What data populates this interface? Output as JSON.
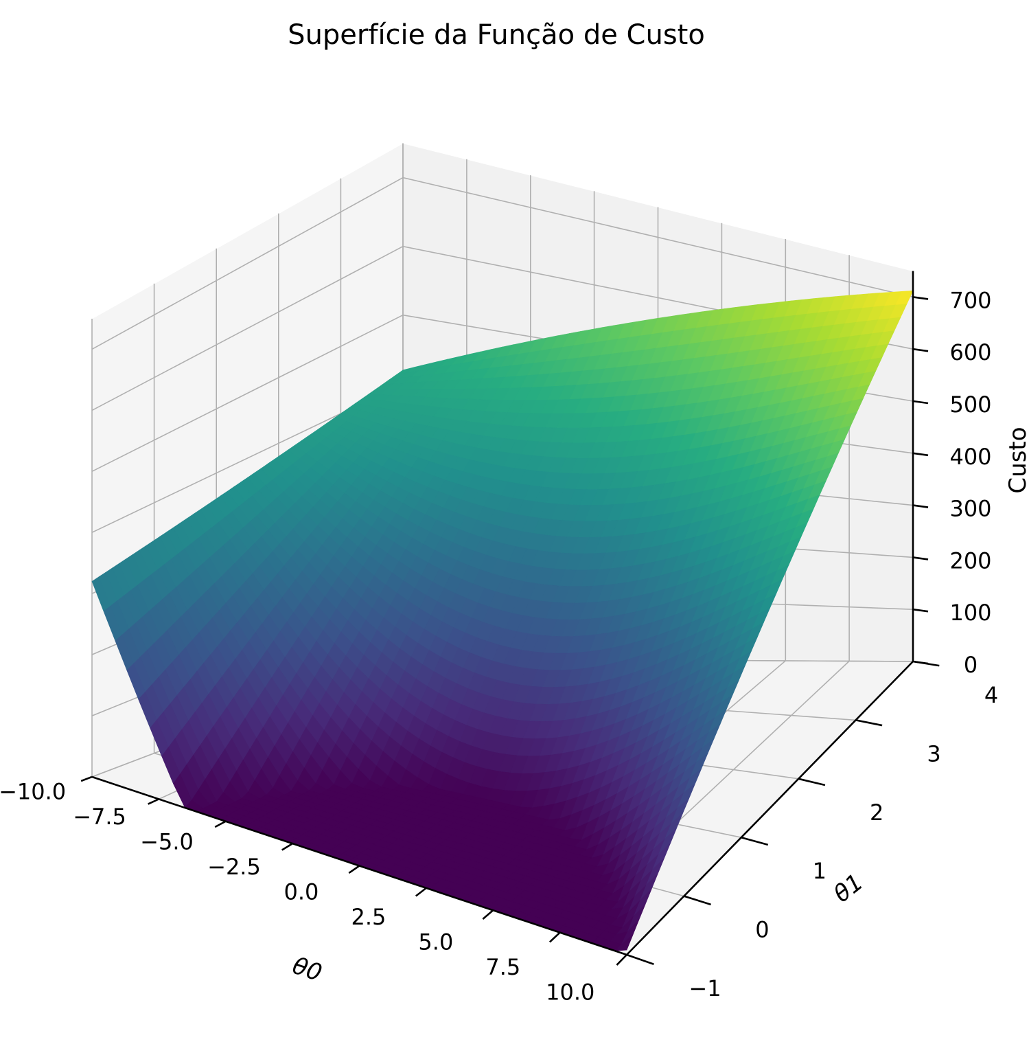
{
  "chart_data": {
    "type": "surface",
    "title": "Superfície da Função de Custo",
    "xlabel": "θ0",
    "ylabel": "θ1",
    "zlabel": "Custo",
    "xlim": [
      -10,
      10
    ],
    "ylim": [
      -1,
      4
    ],
    "zlim": [
      0,
      750
    ],
    "x_ticks": [
      -10.0,
      -7.5,
      -5.0,
      -2.5,
      0.0,
      2.5,
      5.0,
      7.5,
      10.0
    ],
    "x_tick_labels": [
      "−10.0",
      "−7.5",
      "−5.0",
      "−2.5",
      "0.0",
      "2.5",
      "5.0",
      "7.5",
      "10.0"
    ],
    "y_ticks": [
      -1,
      0,
      1,
      2,
      3,
      4
    ],
    "y_tick_labels": [
      "−1",
      "0",
      "1",
      "2",
      "3",
      "4"
    ],
    "z_ticks": [
      0,
      100,
      200,
      300,
      400,
      500,
      600,
      700
    ],
    "z_tick_labels": [
      "0",
      "100",
      "200",
      "300",
      "400",
      "500",
      "600",
      "700"
    ],
    "colormap": "viridis",
    "grid": true,
    "surface_corners": [
      {
        "theta0": -10,
        "theta1": -1,
        "cost": 320
      },
      {
        "theta0": 10,
        "theta1": -1,
        "cost": 8
      },
      {
        "theta0": -10,
        "theta1": 4,
        "cost": 420
      },
      {
        "theta0": 10,
        "theta1": 4,
        "cost": 712
      }
    ],
    "min_cost": 0
  }
}
